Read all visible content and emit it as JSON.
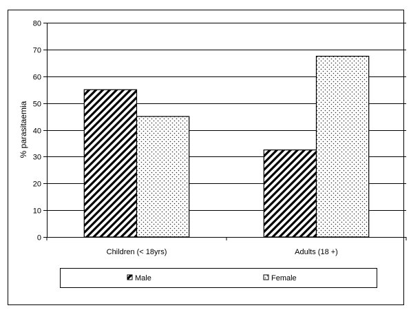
{
  "chart_data": {
    "type": "bar",
    "title": "",
    "xlabel": "",
    "ylabel": "% parasitaemia",
    "categories": [
      "Children (< 18yrs)",
      "Adults (18 +)"
    ],
    "series": [
      {
        "name": "Male",
        "values": [
          55,
          32.5
        ],
        "pattern": "diagonal-stripes"
      },
      {
        "name": "Female",
        "values": [
          45,
          67.5
        ],
        "pattern": "dotted"
      }
    ],
    "ylim": [
      0,
      80
    ],
    "yticks": [
      0,
      10,
      20,
      30,
      40,
      50,
      60,
      70,
      80
    ],
    "grid": true,
    "legend_position": "bottom"
  }
}
